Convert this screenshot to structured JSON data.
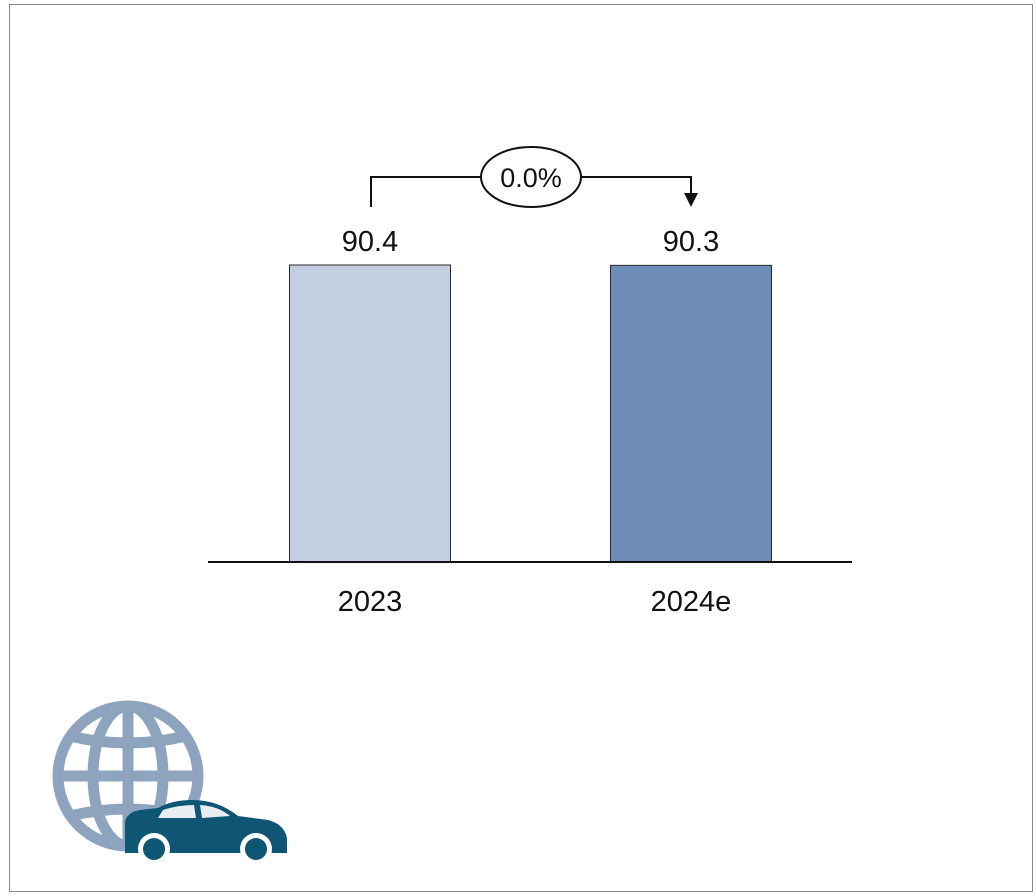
{
  "chart_data": {
    "type": "bar",
    "categories": [
      "2023",
      "2024e"
    ],
    "values": [
      90.4,
      90.3
    ],
    "value_labels": [
      "90.4",
      "90.3"
    ],
    "change_label": "0.0%",
    "title": "",
    "xlabel": "",
    "ylabel": "",
    "ylim": [
      0,
      90.4
    ],
    "grid": false,
    "colors": [
      "#c3cfe1",
      "#6d8db8"
    ],
    "bar_border_color": "#2b2b2b"
  },
  "icons": {
    "globe": "globe-icon",
    "car": "car-icon",
    "globe_color": "#8ea4be",
    "car_color": "#0f5574"
  }
}
